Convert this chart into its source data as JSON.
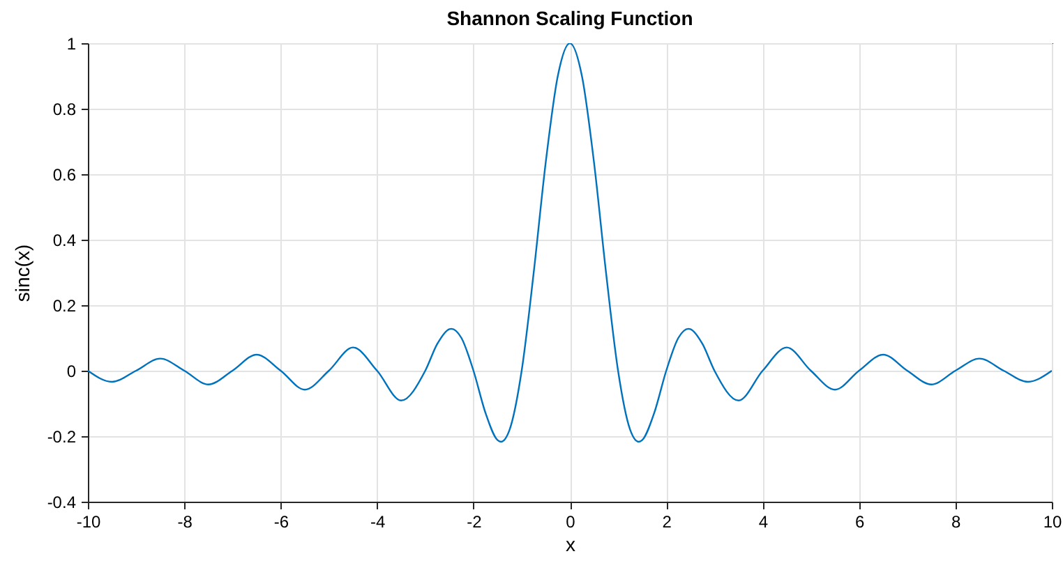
{
  "chart_data": {
    "type": "line",
    "title": "Shannon Scaling Function",
    "xlabel": "x",
    "ylabel": "sinc(x)",
    "x": [
      -10,
      -9.5,
      -9,
      -8.5,
      -8,
      -7.5,
      -7,
      -6.5,
      -6,
      -5.5,
      -5,
      -4.5,
      -4,
      -3.5,
      -3,
      -2.75,
      -2.5,
      -2.46,
      -2.25,
      -2,
      -1.75,
      -1.5,
      -1.43,
      -1.25,
      -1,
      -0.75,
      -0.5,
      -0.25,
      0,
      0.25,
      0.5,
      0.75,
      1,
      1.25,
      1.43,
      1.5,
      1.75,
      2,
      2.25,
      2.46,
      2.5,
      2.75,
      3,
      3.5,
      4,
      4.5,
      5,
      5.5,
      6,
      6.5,
      7,
      7.5,
      8,
      8.5,
      9,
      9.5,
      10
    ],
    "series": [
      {
        "color": "#0072bd",
        "values": [
          0,
          -0.034,
          0,
          0.037,
          0,
          -0.042,
          0,
          0.049,
          0,
          -0.058,
          0,
          0.071,
          0,
          -0.091,
          0,
          0.082,
          0.127,
          0.128,
          0.1,
          0,
          -0.129,
          -0.212,
          -0.217,
          -0.18,
          0,
          0.3,
          0.637,
          0.9,
          1,
          0.9,
          0.637,
          0.3,
          0,
          -0.18,
          -0.217,
          -0.212,
          -0.129,
          0,
          0.1,
          0.128,
          0.127,
          0.082,
          0,
          -0.091,
          0,
          0.071,
          0,
          -0.058,
          0,
          0.049,
          0,
          -0.042,
          0,
          0.037,
          0,
          -0.034,
          0
        ]
      }
    ],
    "xlim": [
      -10,
      10
    ],
    "ylim": [
      -0.4,
      1
    ],
    "xticks": [
      -10,
      -8,
      -6,
      -4,
      -2,
      0,
      2,
      4,
      6,
      8,
      10
    ],
    "yticks": [
      -0.4,
      -0.2,
      0,
      0.2,
      0.4,
      0.6,
      0.8,
      1
    ],
    "grid": true,
    "marker": "none",
    "line_style": "solid"
  }
}
